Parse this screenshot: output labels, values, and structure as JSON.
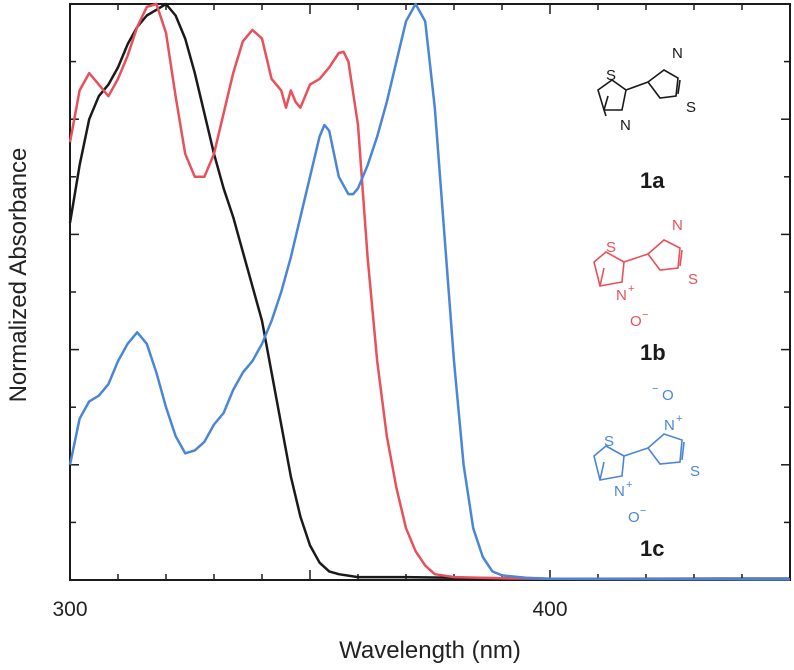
{
  "chart_data": {
    "type": "line",
    "xlabel": "Wavelength (nm)",
    "ylabel": "Normalized Absorbance",
    "xlim": [
      300,
      450
    ],
    "ylim": [
      0,
      1
    ],
    "x_ticks": [
      300,
      400
    ],
    "grid": false,
    "series": [
      {
        "name": "1a",
        "color": "#1a1a1a",
        "points": [
          [
            300,
            0.62
          ],
          [
            302,
            0.72
          ],
          [
            304,
            0.8
          ],
          [
            306,
            0.84
          ],
          [
            308,
            0.86
          ],
          [
            310,
            0.89
          ],
          [
            312,
            0.93
          ],
          [
            314,
            0.96
          ],
          [
            316,
            0.98
          ],
          [
            318,
            0.99
          ],
          [
            320,
            1.0
          ],
          [
            322,
            0.98
          ],
          [
            324,
            0.94
          ],
          [
            326,
            0.88
          ],
          [
            328,
            0.81
          ],
          [
            330,
            0.74
          ],
          [
            332,
            0.68
          ],
          [
            334,
            0.63
          ],
          [
            336,
            0.57
          ],
          [
            338,
            0.51
          ],
          [
            340,
            0.45
          ],
          [
            342,
            0.36
          ],
          [
            344,
            0.27
          ],
          [
            346,
            0.18
          ],
          [
            348,
            0.11
          ],
          [
            350,
            0.06
          ],
          [
            352,
            0.03
          ],
          [
            354,
            0.015
          ],
          [
            356,
            0.01
          ],
          [
            360,
            0.005
          ],
          [
            370,
            0.005
          ],
          [
            380,
            0.004
          ],
          [
            400,
            0.002
          ],
          [
            450,
            0.002
          ]
        ]
      },
      {
        "name": "1b",
        "color": "#e8505a",
        "points": [
          [
            300,
            0.76
          ],
          [
            302,
            0.85
          ],
          [
            304,
            0.88
          ],
          [
            306,
            0.86
          ],
          [
            308,
            0.84
          ],
          [
            310,
            0.87
          ],
          [
            312,
            0.91
          ],
          [
            314,
            0.96
          ],
          [
            316,
            0.995
          ],
          [
            318,
            1.0
          ],
          [
            320,
            0.95
          ],
          [
            322,
            0.84
          ],
          [
            324,
            0.74
          ],
          [
            326,
            0.7
          ],
          [
            328,
            0.7
          ],
          [
            330,
            0.74
          ],
          [
            332,
            0.81
          ],
          [
            334,
            0.88
          ],
          [
            336,
            0.935
          ],
          [
            338,
            0.955
          ],
          [
            340,
            0.94
          ],
          [
            342,
            0.87
          ],
          [
            344,
            0.85
          ],
          [
            345,
            0.82
          ],
          [
            346,
            0.85
          ],
          [
            347,
            0.83
          ],
          [
            348,
            0.82
          ],
          [
            350,
            0.86
          ],
          [
            352,
            0.87
          ],
          [
            354,
            0.89
          ],
          [
            356,
            0.915
          ],
          [
            357,
            0.917
          ],
          [
            358,
            0.9
          ],
          [
            360,
            0.79
          ],
          [
            362,
            0.56
          ],
          [
            364,
            0.38
          ],
          [
            366,
            0.25
          ],
          [
            368,
            0.16
          ],
          [
            370,
            0.09
          ],
          [
            372,
            0.05
          ],
          [
            374,
            0.025
          ],
          [
            376,
            0.01
          ],
          [
            380,
            0.005
          ],
          [
            390,
            0.003
          ],
          [
            400,
            0.002
          ],
          [
            450,
            0.001
          ]
        ]
      },
      {
        "name": "1c",
        "color": "#4a86d8",
        "points": [
          [
            300,
            0.2
          ],
          [
            302,
            0.28
          ],
          [
            304,
            0.31
          ],
          [
            306,
            0.32
          ],
          [
            308,
            0.34
          ],
          [
            310,
            0.38
          ],
          [
            312,
            0.41
          ],
          [
            314,
            0.43
          ],
          [
            316,
            0.41
          ],
          [
            318,
            0.36
          ],
          [
            320,
            0.3
          ],
          [
            322,
            0.25
          ],
          [
            324,
            0.22
          ],
          [
            326,
            0.225
          ],
          [
            328,
            0.24
          ],
          [
            330,
            0.27
          ],
          [
            332,
            0.29
          ],
          [
            334,
            0.33
          ],
          [
            336,
            0.36
          ],
          [
            338,
            0.38
          ],
          [
            340,
            0.41
          ],
          [
            342,
            0.45
          ],
          [
            344,
            0.5
          ],
          [
            346,
            0.56
          ],
          [
            348,
            0.63
          ],
          [
            350,
            0.7
          ],
          [
            352,
            0.77
          ],
          [
            353,
            0.79
          ],
          [
            354,
            0.78
          ],
          [
            356,
            0.7
          ],
          [
            358,
            0.67
          ],
          [
            359,
            0.67
          ],
          [
            360,
            0.68
          ],
          [
            362,
            0.72
          ],
          [
            364,
            0.77
          ],
          [
            366,
            0.83
          ],
          [
            368,
            0.9
          ],
          [
            370,
            0.97
          ],
          [
            372,
            1.0
          ],
          [
            374,
            0.97
          ],
          [
            376,
            0.82
          ],
          [
            378,
            0.6
          ],
          [
            380,
            0.38
          ],
          [
            382,
            0.2
          ],
          [
            384,
            0.09
          ],
          [
            386,
            0.04
          ],
          [
            388,
            0.015
          ],
          [
            390,
            0.008
          ],
          [
            395,
            0.004
          ],
          [
            400,
            0.002
          ],
          [
            450,
            0.001
          ]
        ]
      }
    ],
    "compound_labels": [
      "1a",
      "1b",
      "1c"
    ],
    "atom_labels": {
      "sulfur": "S",
      "nitrogen": "N",
      "oxygen": "O",
      "plus": "+",
      "minus": "−"
    }
  }
}
